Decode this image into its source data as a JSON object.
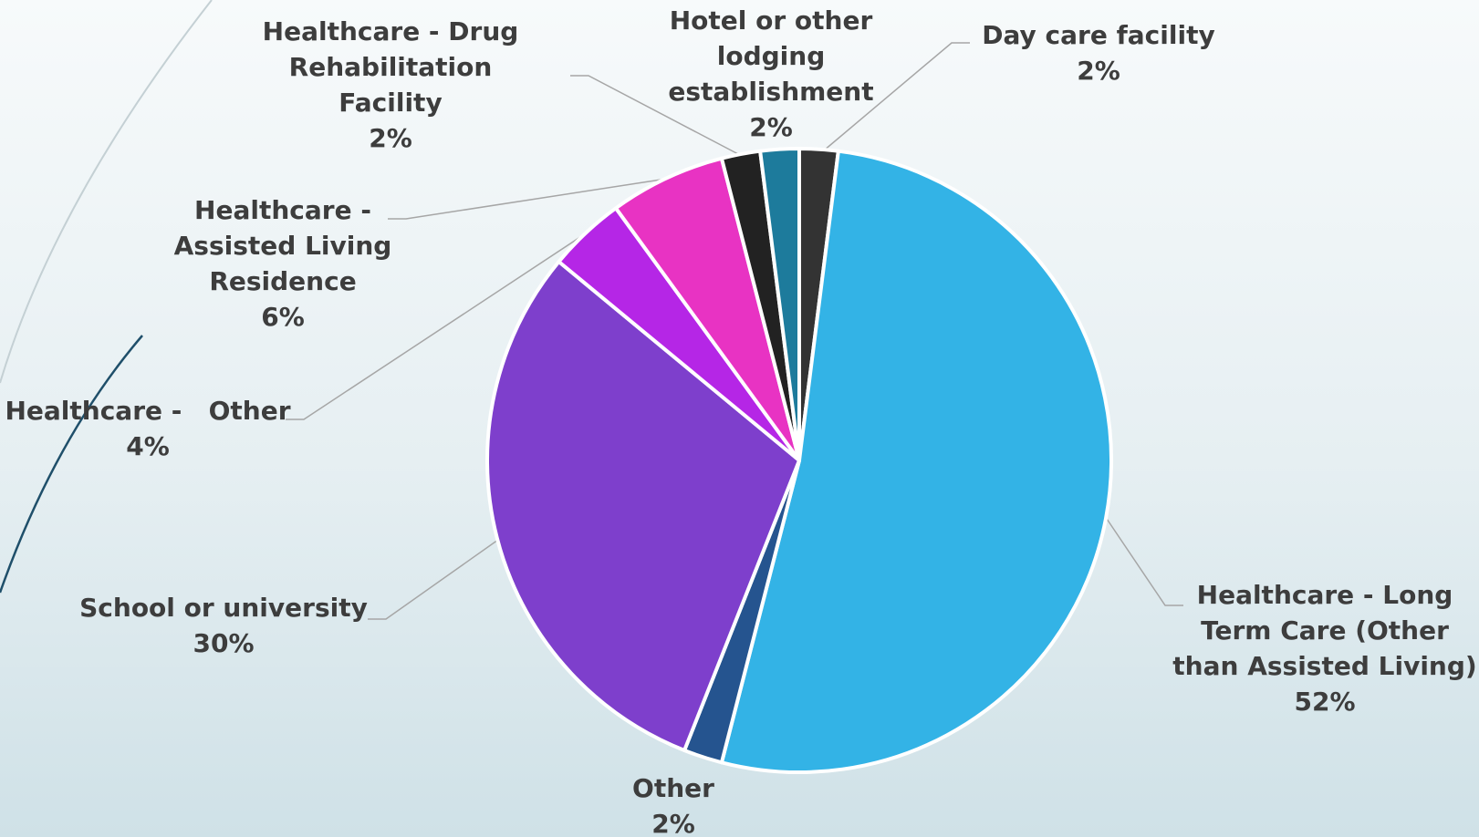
{
  "chart_data": {
    "type": "pie",
    "start_angle_deg": 0,
    "slices": [
      {
        "label_lines": [
          "Day care facility"
        ],
        "value_text": "2%",
        "value": 2,
        "color": "#333333"
      },
      {
        "label_lines": [
          "Healthcare - Long",
          "Term Care (Other",
          "than Assisted Living)"
        ],
        "value_text": "52%",
        "value": 52,
        "color": "#33b3e6"
      },
      {
        "label_lines": [
          "Other"
        ],
        "value_text": "2%",
        "value": 2,
        "color": "#25548f"
      },
      {
        "label_lines": [
          "School or university"
        ],
        "value_text": "30%",
        "value": 30,
        "color": "#7e3fcc"
      },
      {
        "label_lines": [
          "Healthcare -   Other"
        ],
        "value_text": "4%",
        "value": 4,
        "color": "#b526e6"
      },
      {
        "label_lines": [
          "Healthcare -",
          "Assisted Living",
          "Residence"
        ],
        "value_text": "6%",
        "value": 6,
        "color": "#e833c3"
      },
      {
        "label_lines": [
          "Healthcare - Drug",
          "Rehabilitation",
          "Facility"
        ],
        "value_text": "2%",
        "value": 2,
        "color": "#222222"
      },
      {
        "label_lines": [
          "Hotel or other",
          "lodging",
          "establishment"
        ],
        "value_text": "2%",
        "value": 2,
        "color": "#1d7b9c"
      }
    ]
  }
}
